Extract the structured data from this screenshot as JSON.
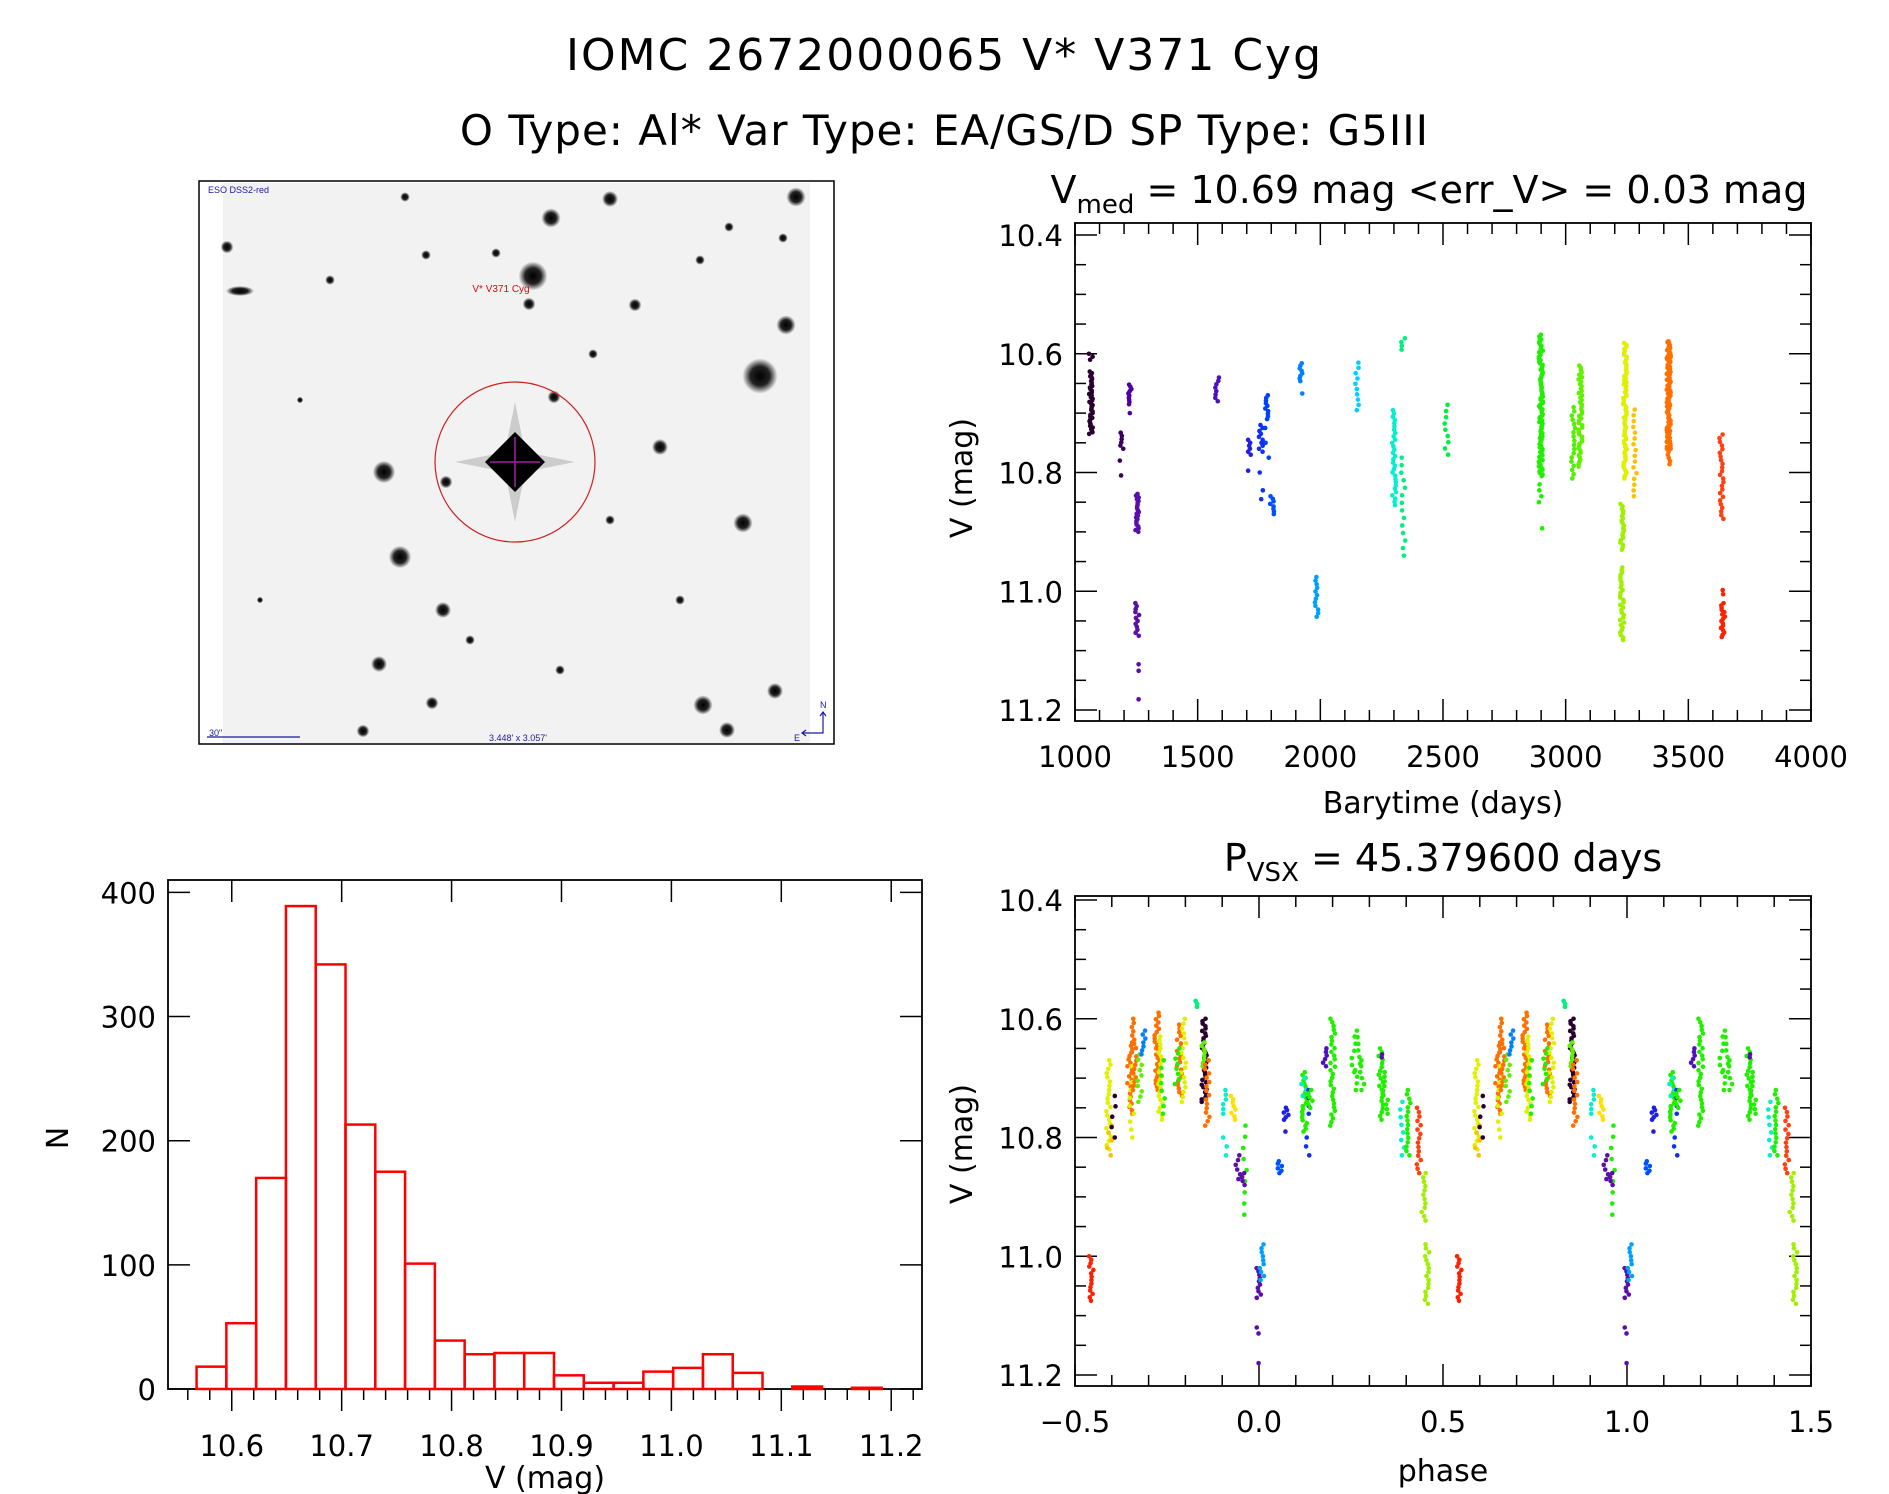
{
  "header": {
    "title_line1": "IOMC 2672000065    V* V371 Cyg",
    "title_line2": "O Type: Al*   Var Type: EA/GS/D   SP Type: G5III"
  },
  "image_panel": {
    "survey_label": "ESO DSS2-red",
    "target_label": "V* V371 Cyg",
    "scale_label": "30\"",
    "fov_label": "3.448' x 3.057'",
    "north_label": "N",
    "east_label": "E",
    "colors": {
      "circle": "#cc2020",
      "labels": "#1a1aa0",
      "target_label": "#cc1010",
      "crosshair": "#a020a0"
    }
  },
  "chart_data": [
    {
      "type": "scatter",
      "panel": "light-curve",
      "title_main": "V",
      "title_sub": "med",
      "title_rest": " = 10.69 mag <err_V> = 0.03 mag",
      "xlabel": "Barytime (days)",
      "ylabel": "V (mag)",
      "xlim": [
        1000,
        4000
      ],
      "ylim": [
        10.4,
        11.2
      ],
      "y_inverted": true,
      "xticks": [
        "1000",
        "1500",
        "2000",
        "2500",
        "3000",
        "3500",
        "4000"
      ],
      "yticks": [
        "10.4",
        "10.6",
        "10.8",
        "11.0",
        "11.2"
      ],
      "groups": [
        {
          "t": 1065,
          "color": "#2a0030",
          "ranges": [
            [
              10.6,
              10.61,
              3
            ],
            [
              10.63,
              10.735,
              40
            ]
          ]
        },
        {
          "t": 1190,
          "color": "#3a0060",
          "ranges": [
            [
              10.733,
              10.76,
              6
            ],
            [
              10.78,
              10.78,
              1
            ],
            [
              10.805,
              10.805,
              1
            ]
          ]
        },
        {
          "t": 1223,
          "color": "#5000a0",
          "ranges": [
            [
              10.652,
              10.685,
              10
            ],
            [
              10.7,
              10.7,
              1
            ]
          ]
        },
        {
          "t": 1253,
          "color": "#5a10a8",
          "ranges": [
            [
              10.836,
              10.9,
              22
            ],
            [
              11.02,
              11.075,
              12
            ],
            [
              11.123,
              11.134,
              2
            ],
            [
              11.182,
              11.182,
              1
            ]
          ]
        },
        {
          "t": 1580,
          "color": "#5010c0",
          "ranges": [
            [
              10.64,
              10.68,
              8
            ]
          ]
        },
        {
          "t": 1710,
          "color": "#2020e0",
          "ranges": [
            [
              10.745,
              10.77,
              6
            ],
            [
              10.797,
              10.797,
              1
            ]
          ]
        },
        {
          "t": 1758,
          "color": "#1030f0",
          "ranges": [
            [
              10.72,
              10.765,
              10
            ],
            [
              10.8,
              10.8,
              1
            ],
            [
              10.83,
              10.845,
              2
            ]
          ]
        },
        {
          "t": 1783,
          "color": "#0040ff",
          "ranges": [
            [
              10.67,
              10.71,
              10
            ],
            [
              10.725,
              10.725,
              1
            ],
            [
              10.75,
              10.75,
              1
            ],
            [
              10.775,
              10.775,
              1
            ]
          ]
        },
        {
          "t": 1803,
          "color": "#0050ff",
          "ranges": [
            [
              10.84,
              10.87,
              8
            ]
          ]
        },
        {
          "t": 1920,
          "color": "#0080ff",
          "ranges": [
            [
              10.616,
              10.646,
              8
            ],
            [
              10.667,
              10.667,
              1
            ]
          ]
        },
        {
          "t": 1983,
          "color": "#00a0ff",
          "ranges": [
            [
              10.976,
              11.043,
              12
            ]
          ]
        },
        {
          "t": 2149,
          "color": "#00d0ff",
          "ranges": [
            [
              10.615,
              10.695,
              10
            ]
          ]
        },
        {
          "t": 2301,
          "color": "#00f0d0",
          "ranges": [
            [
              10.695,
              10.855,
              30
            ]
          ]
        },
        {
          "t": 2338,
          "color": "#00f080",
          "ranges": [
            [
              10.574,
              10.593,
              4
            ],
            [
              10.775,
              10.94,
              14
            ]
          ]
        },
        {
          "t": 2514,
          "color": "#00f040",
          "ranges": [
            [
              10.686,
              10.77,
              9
            ]
          ]
        },
        {
          "t": 2899,
          "color": "#20f000",
          "ranges": [
            [
              10.568,
              10.806,
              90
            ],
            [
              10.82,
              10.85,
              4
            ],
            [
              10.894,
              10.894,
              1
            ]
          ]
        },
        {
          "t": 3031,
          "color": "#50f000",
          "ranges": [
            [
              10.69,
              10.81,
              18
            ]
          ]
        },
        {
          "t": 3060,
          "color": "#60f000",
          "ranges": [
            [
              10.62,
              10.79,
              45
            ]
          ]
        },
        {
          "t": 3230,
          "color": "#a0f000",
          "ranges": [
            [
              10.853,
              10.93,
              20
            ],
            [
              10.96,
              11.082,
              30
            ]
          ]
        },
        {
          "t": 3242,
          "color": "#e0f000",
          "ranges": [
            [
              10.582,
              10.81,
              70
            ]
          ]
        },
        {
          "t": 3283,
          "color": "#ffc000",
          "ranges": [
            [
              10.694,
              10.84,
              16
            ]
          ]
        },
        {
          "t": 3420,
          "color": "#ff7000",
          "ranges": [
            [
              10.579,
              10.76,
              110
            ],
            [
              10.76,
              10.786,
              6
            ]
          ]
        },
        {
          "t": 3635,
          "color": "#ff4010",
          "ranges": [
            [
              10.736,
              10.878,
              24
            ]
          ]
        },
        {
          "t": 3641,
          "color": "#ff2000",
          "ranges": [
            [
              10.998,
              11.005,
              2
            ],
            [
              11.02,
              11.077,
              16
            ]
          ]
        }
      ]
    },
    {
      "type": "scatter",
      "panel": "phase-curve",
      "title_main": "P",
      "title_sub": "VSX",
      "title_rest": " = 45.379600 days",
      "xlabel": "phase",
      "ylabel": "V (mag)",
      "xlim": [
        -0.5,
        1.5
      ],
      "ylim": [
        10.4,
        11.2
      ],
      "y_inverted": true,
      "repeat_offset": 1,
      "xticks": [
        "−0.5",
        "0.0",
        "0.5",
        "1.0",
        "1.5"
      ],
      "yticks": [
        "10.4",
        "10.6",
        "10.8",
        "11.0",
        "11.2"
      ],
      "groups": [
        {
          "phase": -0.455,
          "color": "#ff2000",
          "ranges": [
            [
              11.0,
              11.075,
              14
            ]
          ]
        },
        {
          "phase": -0.408,
          "color": "#e0f000",
          "ranges": [
            [
              10.67,
              10.82,
              22
            ]
          ]
        },
        {
          "phase": -0.406,
          "color": "#ffc000",
          "ranges": [
            [
              10.78,
              10.83,
              5
            ]
          ]
        },
        {
          "phase": -0.396,
          "color": "#2a0030",
          "ranges": [
            [
              10.73,
              10.8,
              5
            ]
          ]
        },
        {
          "phase": -0.351,
          "color": "#ff7000",
          "ranges": [
            [
              10.64,
              10.76,
              22
            ]
          ]
        },
        {
          "phase": -0.345,
          "color": "#e0f000",
          "ranges": [
            [
              10.68,
              10.8,
              10
            ]
          ]
        },
        {
          "phase": -0.34,
          "color": "#ff7000",
          "ranges": [
            [
              10.6,
              10.72,
              18
            ]
          ]
        },
        {
          "phase": -0.325,
          "color": "#60f000",
          "ranges": [
            [
              10.66,
              10.74,
              10
            ]
          ]
        },
        {
          "phase": -0.314,
          "color": "#0080ff",
          "ranges": [
            [
              10.62,
              10.66,
              7
            ]
          ]
        },
        {
          "phase": -0.277,
          "color": "#ff7000",
          "ranges": [
            [
              10.59,
              10.72,
              25
            ]
          ]
        },
        {
          "phase": -0.268,
          "color": "#e0f000",
          "ranges": [
            [
              10.63,
              10.77,
              22
            ]
          ]
        },
        {
          "phase": -0.262,
          "color": "#20f000",
          "ranges": [
            [
              10.67,
              10.76,
              8
            ]
          ]
        },
        {
          "phase": -0.216,
          "color": "#ff7000",
          "ranges": [
            [
              10.61,
              10.73,
              20
            ]
          ]
        },
        {
          "phase": -0.205,
          "color": "#e0f000",
          "ranges": [
            [
              10.6,
              10.74,
              18
            ]
          ]
        },
        {
          "phase": -0.222,
          "color": "#20f000",
          "ranges": [
            [
              10.65,
              10.71,
              8
            ]
          ]
        },
        {
          "phase": -0.173,
          "color": "#00f080",
          "ranges": [
            [
              10.57,
              10.58,
              3
            ]
          ]
        },
        {
          "phase": -0.149,
          "color": "#2a0030",
          "ranges": [
            [
              10.6,
              10.74,
              35
            ]
          ]
        },
        {
          "phase": -0.149,
          "color": "#60f000",
          "ranges": [
            [
              10.64,
              10.68,
              8
            ]
          ]
        },
        {
          "phase": -0.141,
          "color": "#ff7000",
          "ranges": [
            [
              10.67,
              10.78,
              16
            ]
          ]
        },
        {
          "phase": -0.092,
          "color": "#00f0d0",
          "ranges": [
            [
              10.72,
              10.76,
              6
            ],
            [
              10.8,
              10.83,
              3
            ]
          ]
        },
        {
          "phase": -0.07,
          "color": "#ffe000",
          "ranges": [
            [
              10.73,
              10.77,
              8
            ]
          ]
        },
        {
          "phase": -0.058,
          "color": "#5a10a8",
          "ranges": [
            [
              10.83,
              10.87,
              6
            ]
          ]
        },
        {
          "phase": -0.04,
          "color": "#20f000",
          "ranges": [
            [
              10.78,
              10.93,
              9
            ]
          ]
        },
        {
          "phase": -0.043,
          "color": "#5a10a8",
          "ranges": [
            [
              10.86,
              10.88,
              4
            ]
          ]
        },
        {
          "phase": -0.001,
          "color": "#5a10a8",
          "ranges": [
            [
              11.02,
              11.07,
              10
            ],
            [
              11.12,
              11.13,
              2
            ],
            [
              11.18,
              11.18,
              1
            ]
          ]
        },
        {
          "phase": 0.008,
          "color": "#00a0ff",
          "ranges": [
            [
              10.98,
              11.04,
              10
            ]
          ]
        },
        {
          "phase": 0.057,
          "color": "#0050ff",
          "ranges": [
            [
              10.84,
              10.86,
              6
            ]
          ]
        },
        {
          "phase": 0.074,
          "color": "#2020e0",
          "ranges": [
            [
              10.75,
              10.77,
              6
            ],
            [
              10.79,
              10.79,
              1
            ]
          ]
        },
        {
          "phase": 0.124,
          "color": "#20f000",
          "ranges": [
            [
              10.69,
              10.79,
              22
            ]
          ]
        },
        {
          "phase": 0.122,
          "color": "#00f0d0",
          "ranges": [
            [
              10.7,
              10.73,
              4
            ]
          ]
        },
        {
          "phase": 0.131,
          "color": "#1030f0",
          "ranges": [
            [
              10.72,
              10.76,
              4
            ],
            [
              10.8,
              10.83,
              3
            ]
          ]
        },
        {
          "phase": 0.14,
          "color": "#20f000",
          "ranges": [
            [
              10.72,
              10.75,
              6
            ]
          ]
        },
        {
          "phase": 0.178,
          "color": "#5010c0",
          "ranges": [
            [
              10.65,
              10.68,
              6
            ]
          ]
        },
        {
          "phase": 0.2,
          "color": "#20f000",
          "ranges": [
            [
              10.6,
              10.78,
              30
            ]
          ]
        },
        {
          "phase": 0.257,
          "color": "#20f000",
          "ranges": [
            [
              10.63,
              10.69,
              6
            ]
          ]
        },
        {
          "phase": 0.268,
          "color": "#20f000",
          "ranges": [
            [
              10.62,
              10.72,
              10
            ]
          ]
        },
        {
          "phase": 0.28,
          "color": "#20f000",
          "ranges": [
            [
              10.67,
              10.72,
              6
            ]
          ]
        },
        {
          "phase": 0.331,
          "color": "#20f000",
          "ranges": [
            [
              10.65,
              10.77,
              20
            ]
          ]
        },
        {
          "phase": 0.328,
          "color": "#5a10a8",
          "ranges": [
            [
              10.66,
              10.665,
              2
            ]
          ]
        },
        {
          "phase": 0.344,
          "color": "#20f000",
          "ranges": [
            [
              10.69,
              10.76,
              10
            ]
          ]
        },
        {
          "phase": 0.389,
          "color": "#00f0d0",
          "ranges": [
            [
              10.74,
              10.83,
              8
            ]
          ]
        },
        {
          "phase": 0.405,
          "color": "#20f000",
          "ranges": [
            [
              10.72,
              10.83,
              16
            ]
          ]
        },
        {
          "phase": 0.435,
          "color": "#ff4010",
          "ranges": [
            [
              10.75,
              10.86,
              16
            ]
          ]
        },
        {
          "phase": 0.447,
          "color": "#a0f000",
          "ranges": [
            [
              10.86,
              10.94,
              12
            ]
          ]
        },
        {
          "phase": 0.457,
          "color": "#a0f000",
          "ranges": [
            [
              10.98,
              11.08,
              16
            ]
          ]
        }
      ]
    },
    {
      "type": "bar",
      "panel": "histogram",
      "style": "step-histogram",
      "xlabel": "V (mag)",
      "ylabel": "N",
      "xlim": [
        10.542,
        11.228
      ],
      "ylim": [
        0,
        410
      ],
      "bar_color": "#ff0000",
      "bin_start": 10.568,
      "bin_width": 0.0271,
      "counts": [
        18,
        53,
        170,
        389,
        342,
        213,
        175,
        101,
        39,
        28,
        29,
        29,
        11,
        5,
        5,
        14,
        17,
        28,
        13,
        0,
        2,
        0,
        1
      ],
      "xticks": [
        "10.6",
        "10.7",
        "10.8",
        "10.9",
        "11.0",
        "11.1",
        "11.2"
      ],
      "yticks": [
        "0",
        "100",
        "200",
        "300",
        "400"
      ]
    }
  ]
}
